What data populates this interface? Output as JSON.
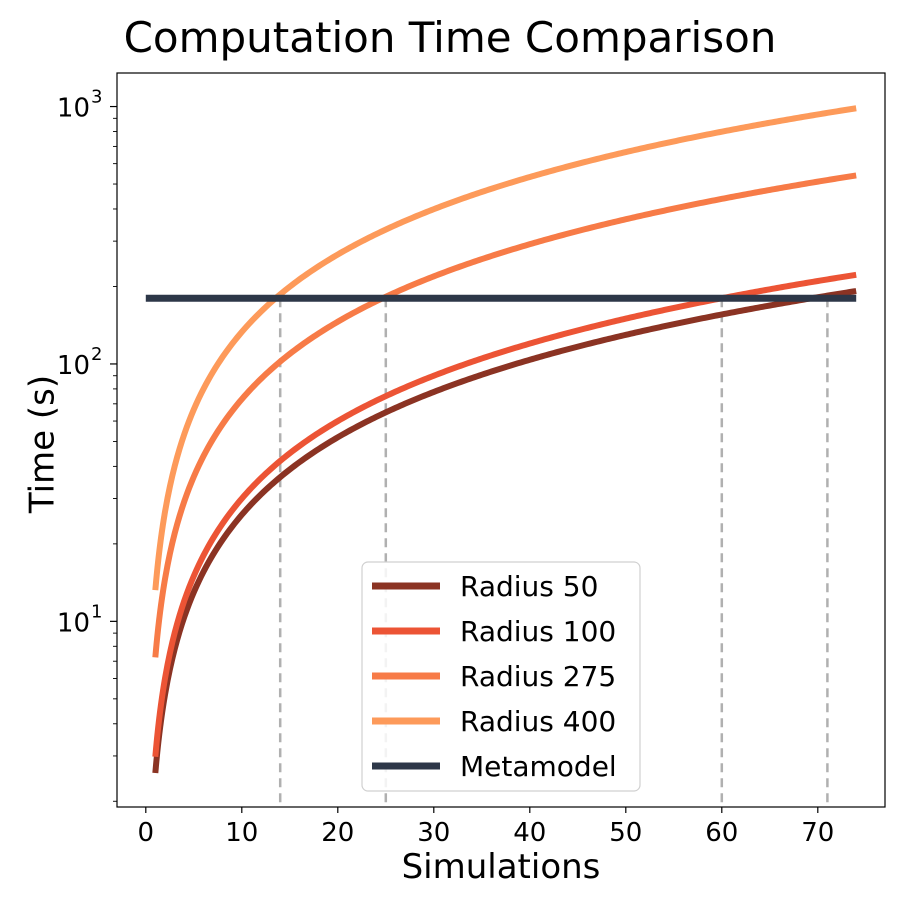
{
  "chart_data": {
    "type": "line",
    "title": "Computation Time Comparison",
    "xlabel": "Simulations",
    "ylabel": "Time (s)",
    "xlim": [
      -3,
      77
    ],
    "ylim": [
      1.9,
      1350
    ],
    "yscale": "log",
    "grid": false,
    "legend_position": "bottom-center",
    "x_ticks": [
      0,
      10,
      20,
      30,
      40,
      50,
      60,
      70
    ],
    "y_ticks": [
      {
        "value": 10,
        "base": "10",
        "exp": "1"
      },
      {
        "value": 100,
        "base": "10",
        "exp": "2"
      },
      {
        "value": 1000,
        "base": "10",
        "exp": "3"
      }
    ],
    "x": [
      1,
      2,
      3,
      4,
      5,
      7,
      10,
      14,
      20,
      25,
      30,
      40,
      50,
      60,
      71,
      74
    ],
    "series": [
      {
        "name": "Radius 50",
        "color": "#8b3323",
        "values": [
          2.6,
          5.2,
          7.8,
          10.4,
          13,
          18.2,
          26,
          36.4,
          52,
          65,
          78,
          104,
          130,
          156,
          184.6,
          192
        ]
      },
      {
        "name": "Radius 100",
        "color": "#ec5435",
        "values": [
          3,
          6,
          9,
          12,
          15,
          21,
          30,
          42,
          60,
          75,
          90,
          120,
          150,
          180,
          213,
          222
        ]
      },
      {
        "name": "Radius 275",
        "color": "#f77b47",
        "values": [
          7.3,
          14.6,
          21.9,
          29.2,
          36.5,
          51.1,
          73,
          102.2,
          146,
          182.5,
          219,
          292,
          365,
          438,
          518,
          540
        ]
      },
      {
        "name": "Radius 400",
        "color": "#fd9a5a",
        "values": [
          13.3,
          26.6,
          39.9,
          53.2,
          66.5,
          93.1,
          133,
          186,
          266,
          332.5,
          399,
          532,
          665,
          798,
          944,
          985
        ]
      }
    ],
    "metamodel": {
      "name": "Metamodel",
      "color": "#2d3748",
      "value": 180,
      "x_start": 0,
      "x_end": 74
    },
    "crossover_lines": {
      "color": "#b0b0b0",
      "x": [
        14,
        25,
        60,
        71
      ]
    }
  }
}
